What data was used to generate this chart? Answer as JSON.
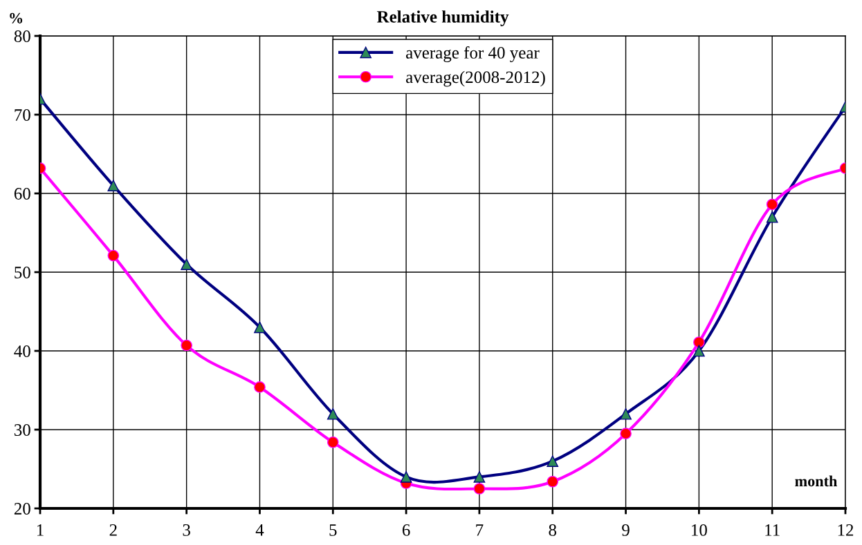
{
  "chart_data": {
    "type": "line",
    "title": "Relative humidity",
    "ylabel": "%",
    "xlabel": "month",
    "x": [
      1,
      2,
      3,
      4,
      5,
      6,
      7,
      8,
      9,
      10,
      11,
      12
    ],
    "series": [
      {
        "name": "average for 40 year",
        "color": "#000080",
        "marker": "triangle",
        "values": [
          72,
          61,
          51,
          43,
          32,
          24,
          24,
          26,
          32,
          40,
          57,
          71
        ]
      },
      {
        "name": "average(2008-2012)",
        "color": "#ff00ff",
        "marker": "circle",
        "values": [
          63.2,
          52.1,
          40.7,
          35.4,
          28.4,
          23.2,
          22.5,
          23.4,
          29.5,
          41.1,
          58.6,
          63.2
        ]
      }
    ],
    "xlim": [
      1,
      12
    ],
    "xticks": [
      1,
      2,
      3,
      4,
      5,
      6,
      7,
      8,
      9,
      10,
      11,
      12
    ],
    "ylim": [
      20,
      80
    ],
    "yticks": [
      20,
      30,
      40,
      50,
      60,
      70,
      80
    ],
    "grid": true,
    "legend": "top",
    "line_style": "solid"
  }
}
